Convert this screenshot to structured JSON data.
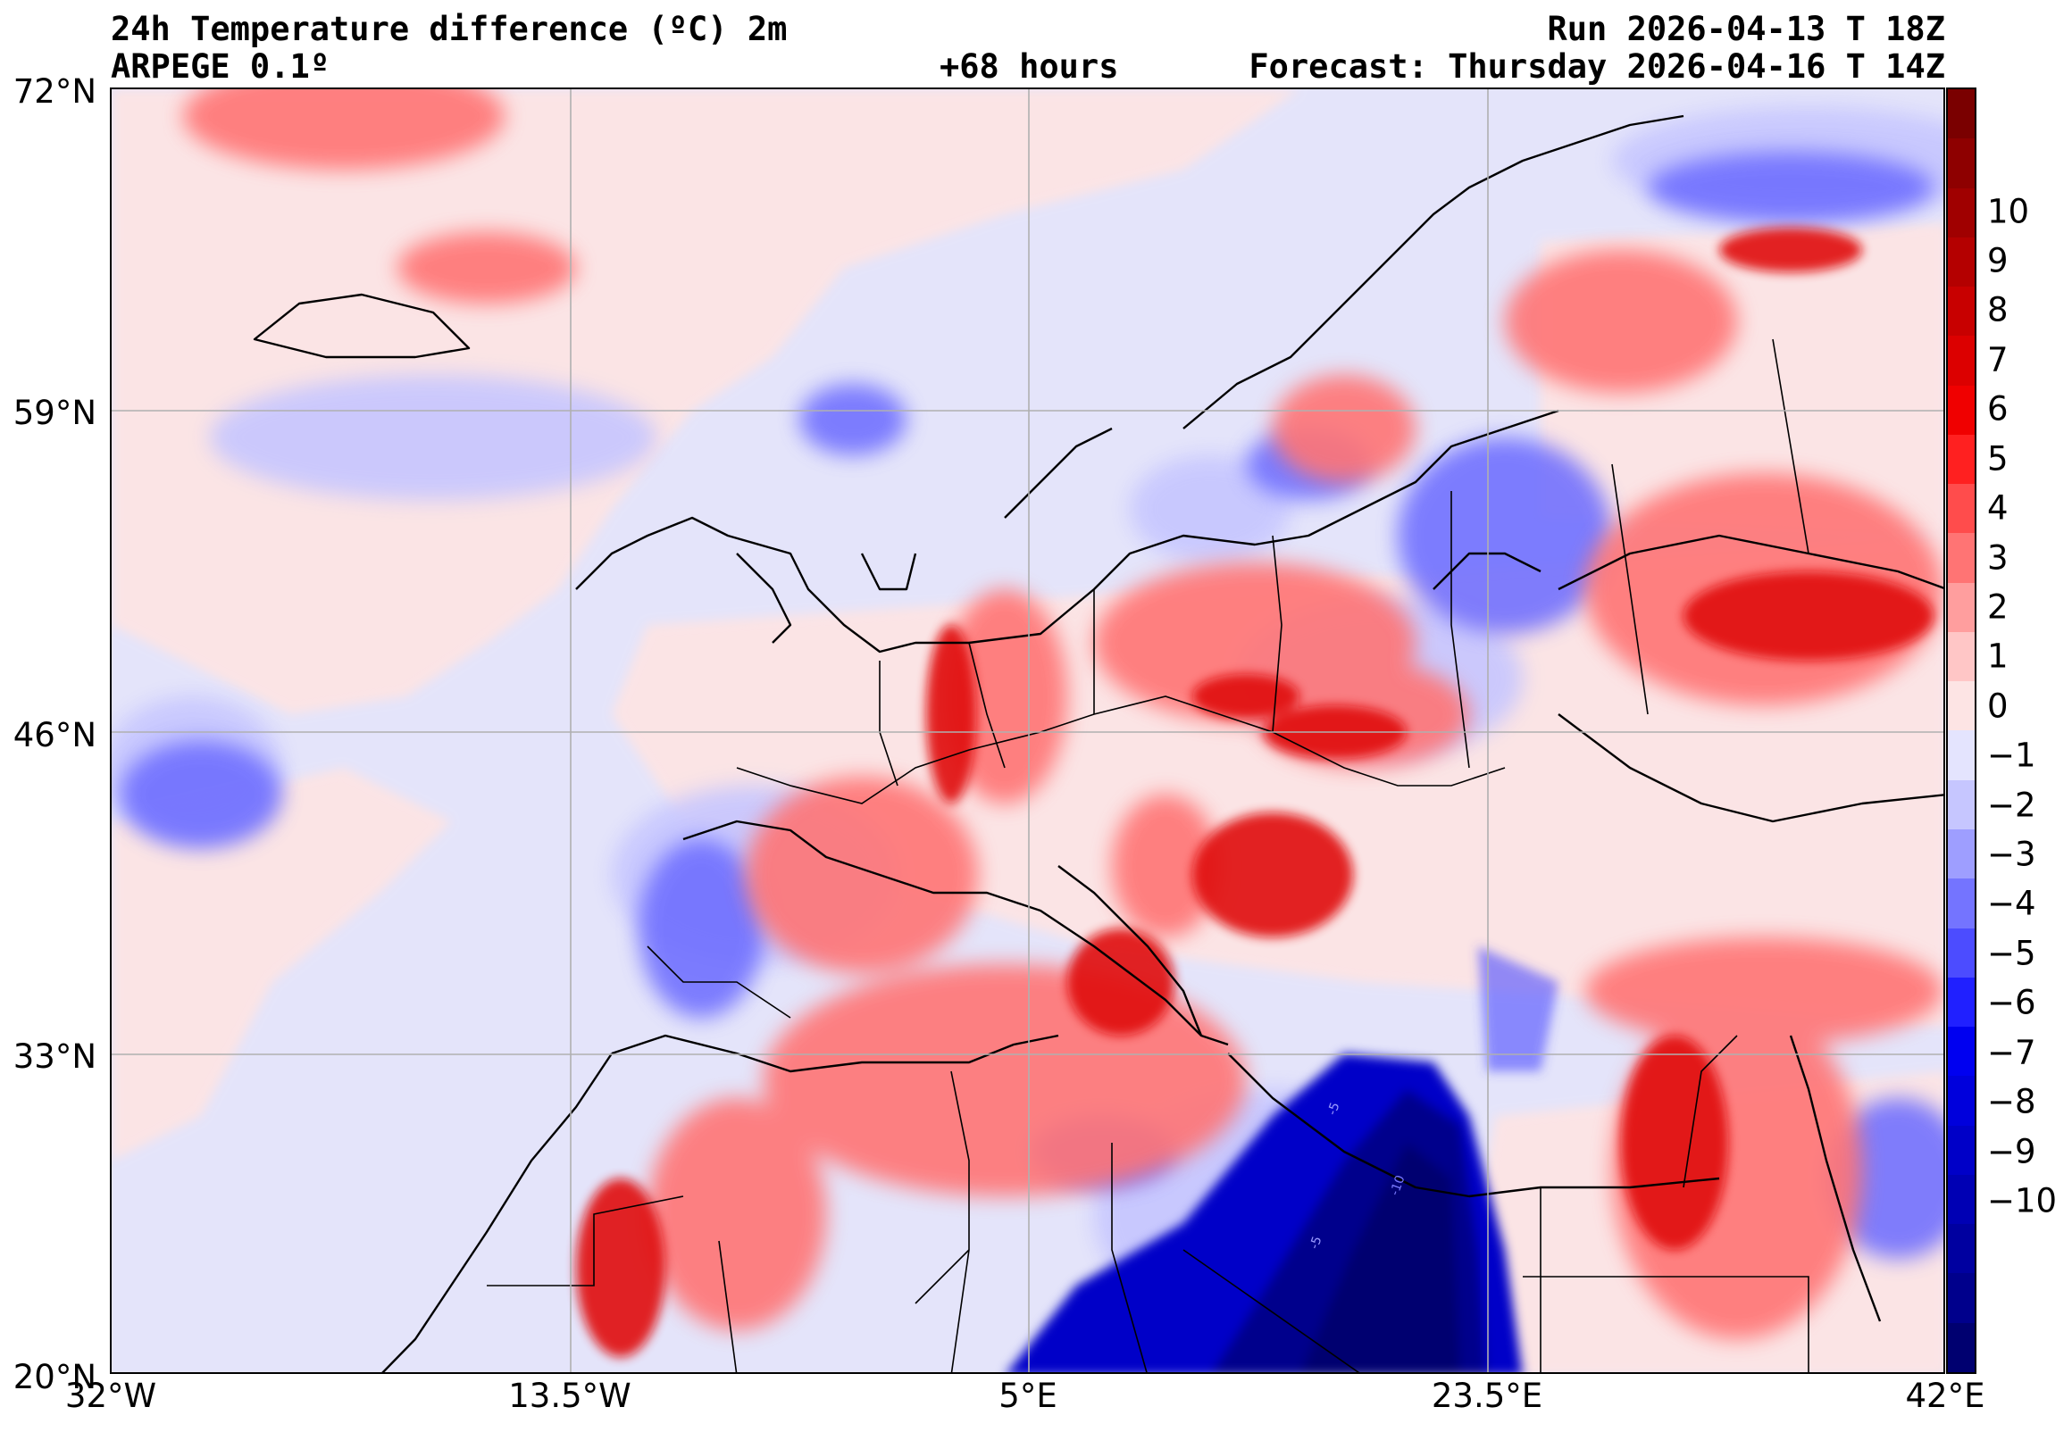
{
  "header": {
    "title_line1": "24h Temperature difference (ºC) 2m",
    "model": "ARPEGE 0.1º",
    "lead_time": "+68 hours",
    "run": "Run 2026-04-13 T 18Z",
    "forecast": "Forecast: Thursday 2026-04-16 T 14Z"
  },
  "axes": {
    "lat_labels": [
      "72°N",
      "59°N",
      "46°N",
      "33°N",
      "20°N"
    ],
    "lon_labels": [
      "32°W",
      "13.5°W",
      "5°E",
      "23.5°E",
      "42°E"
    ]
  },
  "map": {
    "lat_range": [
      20,
      72
    ],
    "lon_range": [
      -32,
      42
    ],
    "contour_labels": [
      "-5",
      "-10",
      "-5"
    ]
  },
  "colorbar": {
    "tick_labels": [
      "10",
      "9",
      "8",
      "7",
      "6",
      "5",
      "4",
      "3",
      "2",
      "1",
      "0",
      "−1",
      "−2",
      "−3",
      "−4",
      "−5",
      "−6",
      "−7",
      "−8",
      "−9",
      "−10"
    ],
    "colors_top_to_bottom": [
      "#7a0000",
      "#8e0000",
      "#a00000",
      "#b40000",
      "#c80000",
      "#dc0000",
      "#f00000",
      "#ff2020",
      "#ff4c4c",
      "#ff7474",
      "#ff9e9e",
      "#ffc6c6",
      "#fde4e4",
      "#e4e4fe",
      "#c6c6ff",
      "#9e9eff",
      "#7474ff",
      "#4c4cff",
      "#2020ff",
      "#0000f0",
      "#0000dc",
      "#0000c8",
      "#0000b4",
      "#0000a0",
      "#00008c",
      "#000070"
    ]
  },
  "colors": {
    "sea_background": "#e4e4fa",
    "warm_light": "#fde4e4",
    "warm_mid": "#ff8c8c",
    "warm_strong": "#e01010",
    "cold_light": "#b0b0ff",
    "cold_mid": "#5a5aff",
    "cold_strong": "#0000b0",
    "cold_deep": "#000070"
  }
}
